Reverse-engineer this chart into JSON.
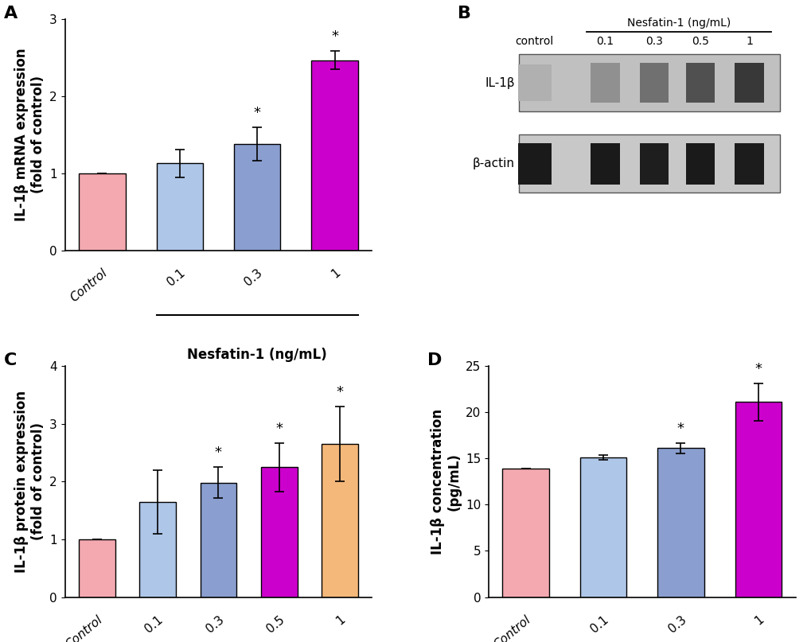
{
  "panel_A": {
    "categories": [
      "Control",
      "0.1",
      "0.3",
      "1"
    ],
    "values": [
      1.0,
      1.13,
      1.38,
      2.47
    ],
    "errors": [
      0.0,
      0.18,
      0.22,
      0.12
    ],
    "colors": [
      "#f4a9b0",
      "#aec6e8",
      "#8a9ecf",
      "#cc00cc"
    ],
    "ylabel": "IL-1β mRNA expression\n(fold of control)",
    "ylim": [
      0,
      3
    ],
    "yticks": [
      0,
      1,
      2,
      3
    ],
    "sig": [
      false,
      false,
      true,
      true
    ],
    "panel_label": "A"
  },
  "panel_C": {
    "categories": [
      "Control",
      "0.1",
      "0.3",
      "0.5",
      "1"
    ],
    "values": [
      1.0,
      1.65,
      1.98,
      2.25,
      2.65
    ],
    "errors": [
      0.0,
      0.55,
      0.27,
      0.42,
      0.65
    ],
    "colors": [
      "#f4a9b0",
      "#aec6e8",
      "#8a9ecf",
      "#cc00cc",
      "#f4b87a"
    ],
    "ylabel": "IL-1β protein expression\n(fold of control)",
    "ylim": [
      0,
      4
    ],
    "yticks": [
      0,
      1,
      2,
      3,
      4
    ],
    "sig": [
      false,
      false,
      true,
      true,
      true
    ],
    "panel_label": "C"
  },
  "panel_D": {
    "categories": [
      "Control",
      "0.1",
      "0.3",
      "1"
    ],
    "values": [
      13.9,
      15.1,
      16.1,
      21.1
    ],
    "errors": [
      0.0,
      0.22,
      0.55,
      2.0
    ],
    "colors": [
      "#f4a9b0",
      "#aec6e8",
      "#8a9ecf",
      "#cc00cc"
    ],
    "ylabel": "IL-1β concentration\n(pg/mL)",
    "ylim": [
      0,
      25
    ],
    "yticks": [
      0,
      5,
      10,
      15,
      20,
      25
    ],
    "sig": [
      false,
      false,
      true,
      true
    ],
    "panel_label": "D"
  },
  "background_color": "#ffffff",
  "bar_edgecolor": "#000000",
  "bar_linewidth": 1.0,
  "tick_fontsize": 11,
  "label_fontsize": 12,
  "panel_label_fontsize": 16,
  "sig_fontsize": 13,
  "xlabel_fontsize": 12
}
